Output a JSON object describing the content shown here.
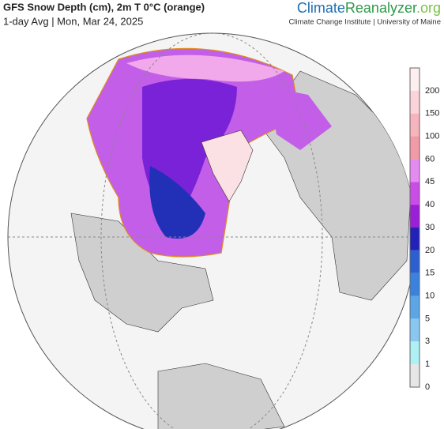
{
  "header": {
    "title": "GFS Snow Depth (cm), 2m T 0°C (orange)",
    "subtitle": "1-day Avg | Mon, Mar 24, 2025",
    "brand": [
      "Climate",
      "Reanalyzer",
      ".org"
    ],
    "institute": "Climate Change Institute | University of Maine"
  },
  "colorbar": {
    "labels": [
      "200",
      "150",
      "100",
      "60",
      "45",
      "40",
      "30",
      "20",
      "15",
      "10",
      "5",
      "3",
      "1",
      "0"
    ],
    "colors": [
      "#fdeef0",
      "#fbd3d8",
      "#f6b4bc",
      "#f29aa6",
      "#e58af0",
      "#c94de6",
      "#9a1fd6",
      "#2222b8",
      "#2c5fd0",
      "#3a82dc",
      "#5aa6e6",
      "#88c8f0",
      "#aef0f4",
      "#e6e6e6"
    ]
  }
}
